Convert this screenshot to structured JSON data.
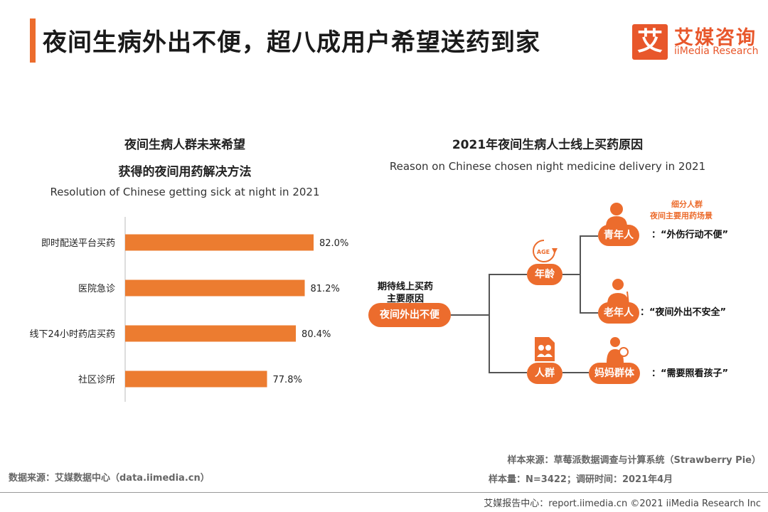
{
  "header": {
    "title": "夜间生病外出不便，超八成用户希望送药到家",
    "logo_mark": "艾",
    "logo_cn": "艾媒咨询",
    "logo_en": "iiMedia Research"
  },
  "left_chart": {
    "title_line1": "夜间生病人群未来希望",
    "title_line2": "获得的夜间用药解决方法",
    "subtitle": "Resolution of Chinese getting sick at night in 2021"
  },
  "chart_data": {
    "type": "bar",
    "orientation": "horizontal",
    "title": "夜间生病人群未来希望获得的夜间用药解决方法",
    "subtitle": "Resolution of Chinese getting sick at night in 2021",
    "categories": [
      "即时配送平台买药",
      "医院急诊",
      "线下24小时药店买药",
      "社区诊所"
    ],
    "values": [
      82.0,
      81.2,
      80.4,
      77.8
    ],
    "value_labels": [
      "82.0%",
      "81.2%",
      "80.4%",
      "77.8%"
    ],
    "unit": "%",
    "bar_color": "#ec7c30",
    "axis_min": 65,
    "axis_max": 82.0
  },
  "right_diagram": {
    "title": "2021年夜间生病人士线上买药原因",
    "subtitle": "Reason on Chinese chosen night medicine delivery in 2021",
    "root_label_line1": "期待线上买药",
    "root_label_line2": "主要原因",
    "root_node": "夜间外出不便",
    "branch_age": "年龄",
    "age_icon_text": "AGE",
    "branch_people": "人群",
    "segment_header_line1": "细分人群",
    "segment_header_line2": "夜间主要用药场景",
    "leaf_young": "青年人",
    "leaf_old": "老年人",
    "leaf_mom": "妈妈群体",
    "quote_young": "：“外伤行动不便”",
    "quote_old": "：“夜间外出不安全”",
    "quote_mom": "：“需要照看孩子”",
    "accent_color": "#ec6c2d",
    "segment_header_color": "#ec6c2d"
  },
  "sources": {
    "sample_source": "样本来源：草莓派数据调查与计算系统（Strawberry Pie）",
    "sample_size": "样本量：N=3422；调研时间：2021年4月",
    "data_source": "数据来源：艾媒数据中心（data.iimedia.cn）",
    "footer": "艾媒报告中心：report.iimedia.cn  ©2021  iiMedia Research  Inc"
  }
}
